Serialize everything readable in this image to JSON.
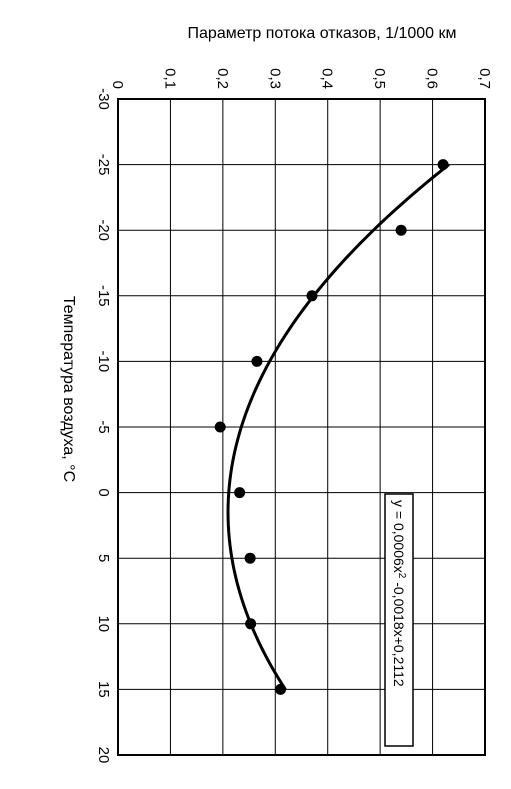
{
  "chart_data": {
    "type": "scatter",
    "ylabel": "Параметр потока отказов, 1/1000 км",
    "xlabel": "Температура воздуха, °С",
    "xlim": [
      -30,
      20
    ],
    "ylim": [
      0,
      0.7
    ],
    "x_ticks": [
      "-30",
      "-25",
      "-20",
      "-15",
      "-10",
      "-5",
      "0",
      "5",
      "10",
      "15",
      "20"
    ],
    "y_ticks": [
      "0",
      "0,1",
      "0,2",
      "0,3",
      "0,4",
      "0,5",
      "0,6",
      "0,7"
    ],
    "grid": true,
    "series": [
      {
        "points": [
          {
            "x": -25,
            "y": 0.62
          },
          {
            "x": -20,
            "y": 0.54
          },
          {
            "x": -15,
            "y": 0.37
          },
          {
            "x": -10,
            "y": 0.265
          },
          {
            "x": -5,
            "y": 0.195
          },
          {
            "x": 0,
            "y": 0.232
          },
          {
            "x": 5,
            "y": 0.252
          },
          {
            "x": 10,
            "y": 0.253
          },
          {
            "x": 15,
            "y": 0.31
          }
        ]
      }
    ],
    "trendline": {
      "type": "polynomial",
      "coefficients": [
        0.0006,
        -0.0018,
        0.2112
      ],
      "x_range": [
        -25,
        15
      ],
      "label_prefix": "y = 0,0006x",
      "label_sup": "2",
      "label_suffix": " -0,0018x+0,2112"
    }
  }
}
